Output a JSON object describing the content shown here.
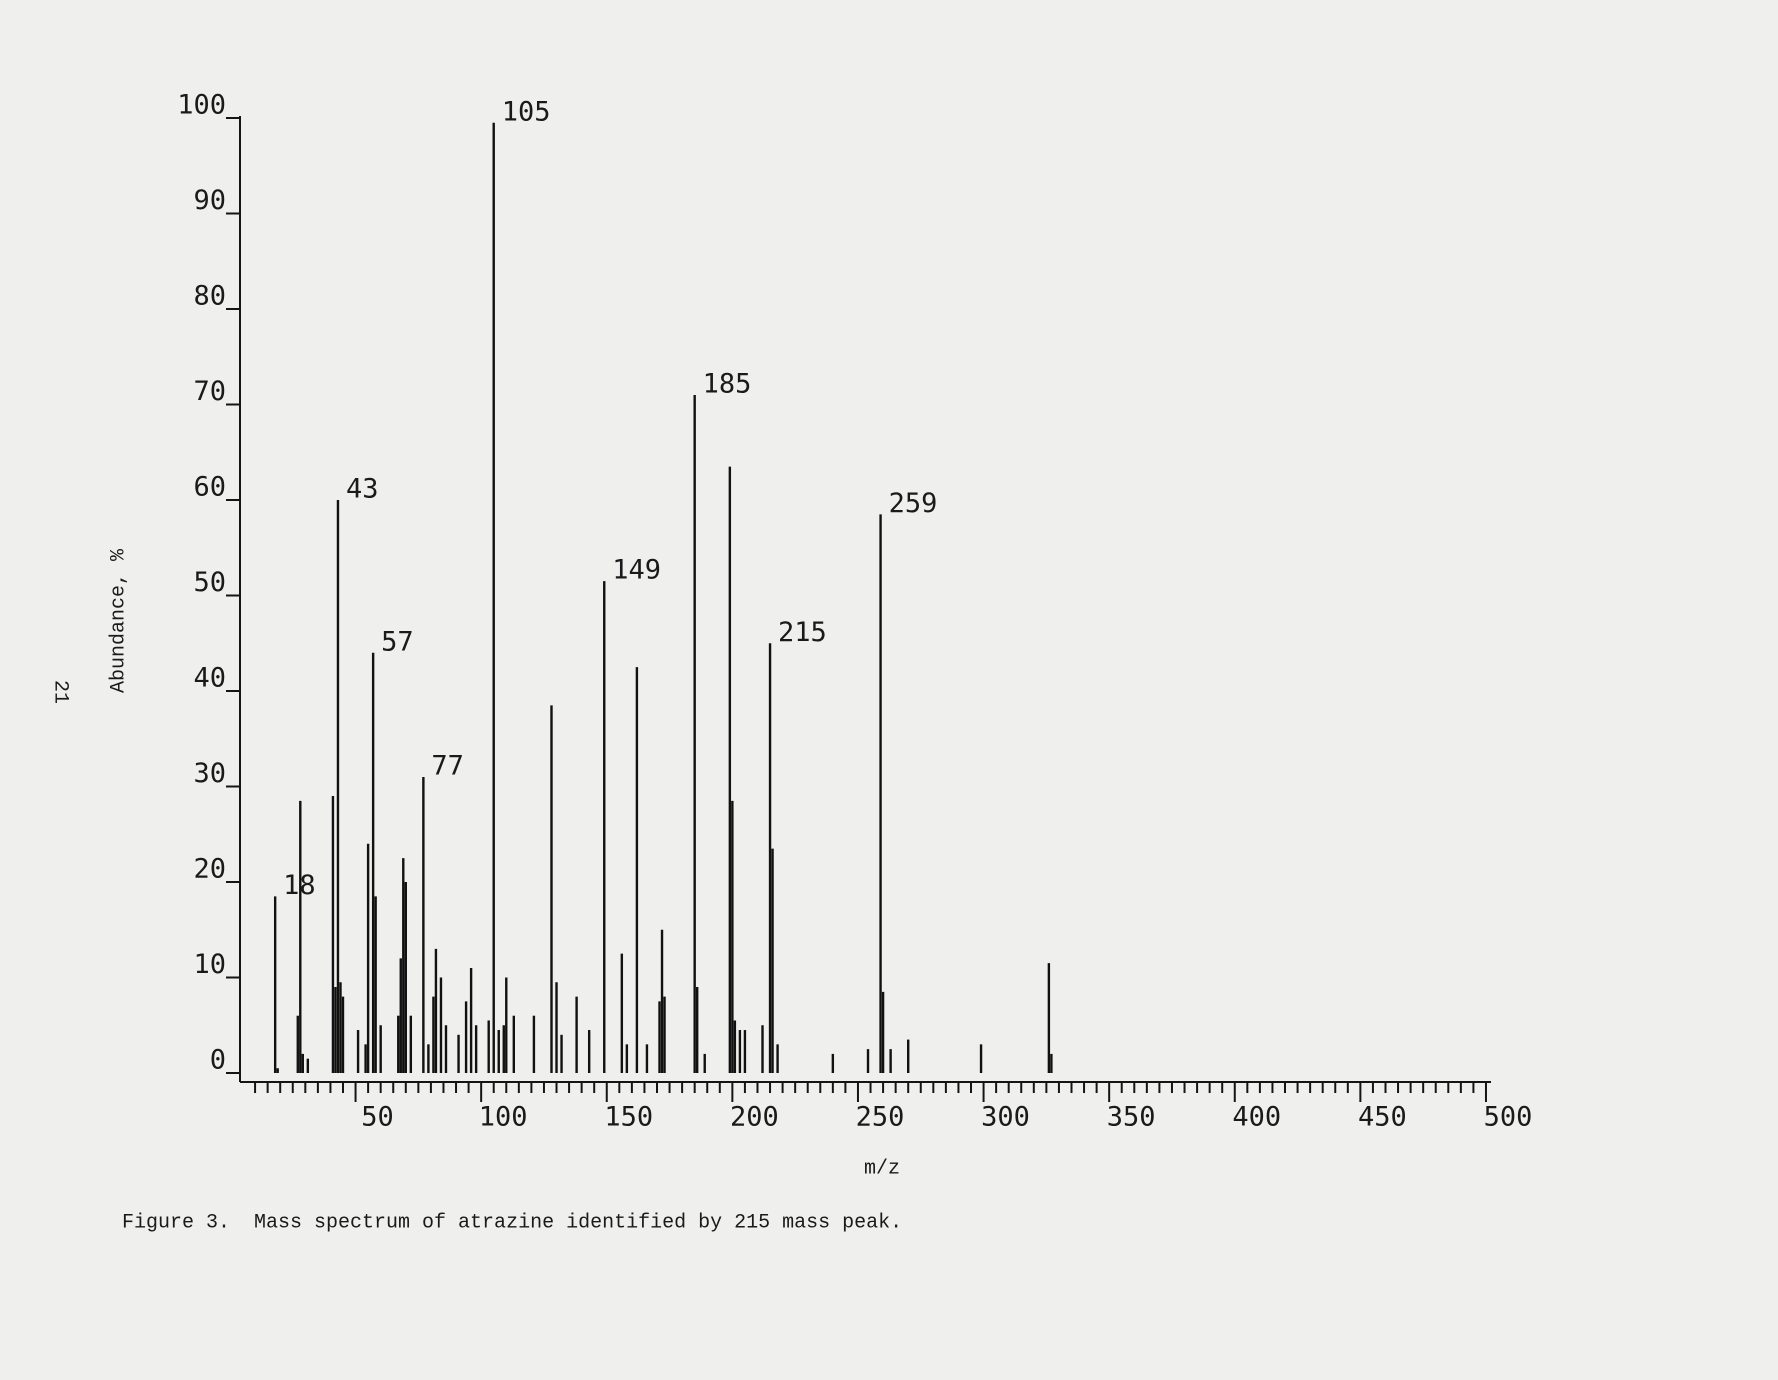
{
  "page_number": "21",
  "chart_data": {
    "type": "stick",
    "ylabel": "Abundance, %",
    "xlabel": "m/z",
    "x": [
      18,
      19,
      27,
      28,
      29,
      31,
      41,
      42,
      43,
      44,
      45,
      51,
      54,
      55,
      57,
      58,
      60,
      67,
      68,
      69,
      70,
      72,
      77,
      79,
      81,
      82,
      84,
      86,
      91,
      94,
      96,
      98,
      103,
      105,
      107,
      109,
      110,
      113,
      121,
      128,
      130,
      132,
      138,
      143,
      149,
      156,
      158,
      162,
      166,
      171,
      172,
      173,
      185,
      186,
      189,
      199,
      200,
      201,
      203,
      205,
      212,
      215,
      216,
      218,
      240,
      254,
      259,
      260,
      263,
      270,
      299,
      326,
      327
    ],
    "values": [
      18.5,
      0.5,
      6,
      28.5,
      2,
      1.5,
      29,
      9,
      60,
      9.5,
      8,
      4.5,
      3,
      24,
      44,
      18.5,
      5,
      6,
      12,
      22.5,
      20,
      6,
      31,
      3,
      8,
      13,
      10,
      5,
      4,
      7.5,
      11,
      5,
      5.5,
      99.5,
      4.5,
      5,
      10,
      6,
      6,
      38.5,
      9.5,
      4,
      8,
      4.5,
      51.5,
      12.5,
      3,
      42.5,
      3,
      7.5,
      15,
      8,
      71,
      9,
      2,
      63.5,
      28.5,
      5.5,
      4.5,
      4.5,
      5,
      45,
      23.5,
      3,
      2,
      2.5,
      58.5,
      8.5,
      2.5,
      3.5,
      3,
      11.5,
      2
    ],
    "color": "#111111",
    "peak_labels": [
      18,
      43,
      57,
      77,
      105,
      149,
      185,
      215,
      259
    ],
    "xlim": [
      4,
      502
    ],
    "ylim": [
      0,
      100
    ],
    "xticks": [
      50,
      100,
      150,
      200,
      250,
      300,
      350,
      400,
      450,
      500
    ],
    "xminorticks": [
      10,
      15,
      20,
      25,
      30,
      35,
      40,
      45,
      55,
      60,
      65,
      70,
      75,
      80,
      85,
      90,
      95,
      105,
      110,
      115,
      120,
      125,
      130,
      135,
      140,
      145,
      155,
      160,
      165,
      170,
      175,
      180,
      185,
      190,
      195,
      205,
      210,
      215,
      220,
      225,
      230,
      235,
      240,
      245,
      255,
      260,
      265,
      270,
      275,
      280,
      285,
      290,
      295,
      305,
      310,
      315,
      320,
      325,
      330,
      335,
      340,
      345,
      355,
      360,
      365,
      370,
      375,
      380,
      385,
      390,
      395,
      405,
      410,
      415,
      420,
      425,
      430,
      435,
      440,
      445,
      455,
      460,
      465,
      470,
      475,
      480,
      485,
      490,
      495
    ],
    "yticks": [
      0,
      10,
      20,
      30,
      40,
      50,
      60,
      70,
      80,
      90,
      100
    ]
  },
  "caption": "Figure 3.  Mass spectrum of atrazine identified by 215 mass peak."
}
